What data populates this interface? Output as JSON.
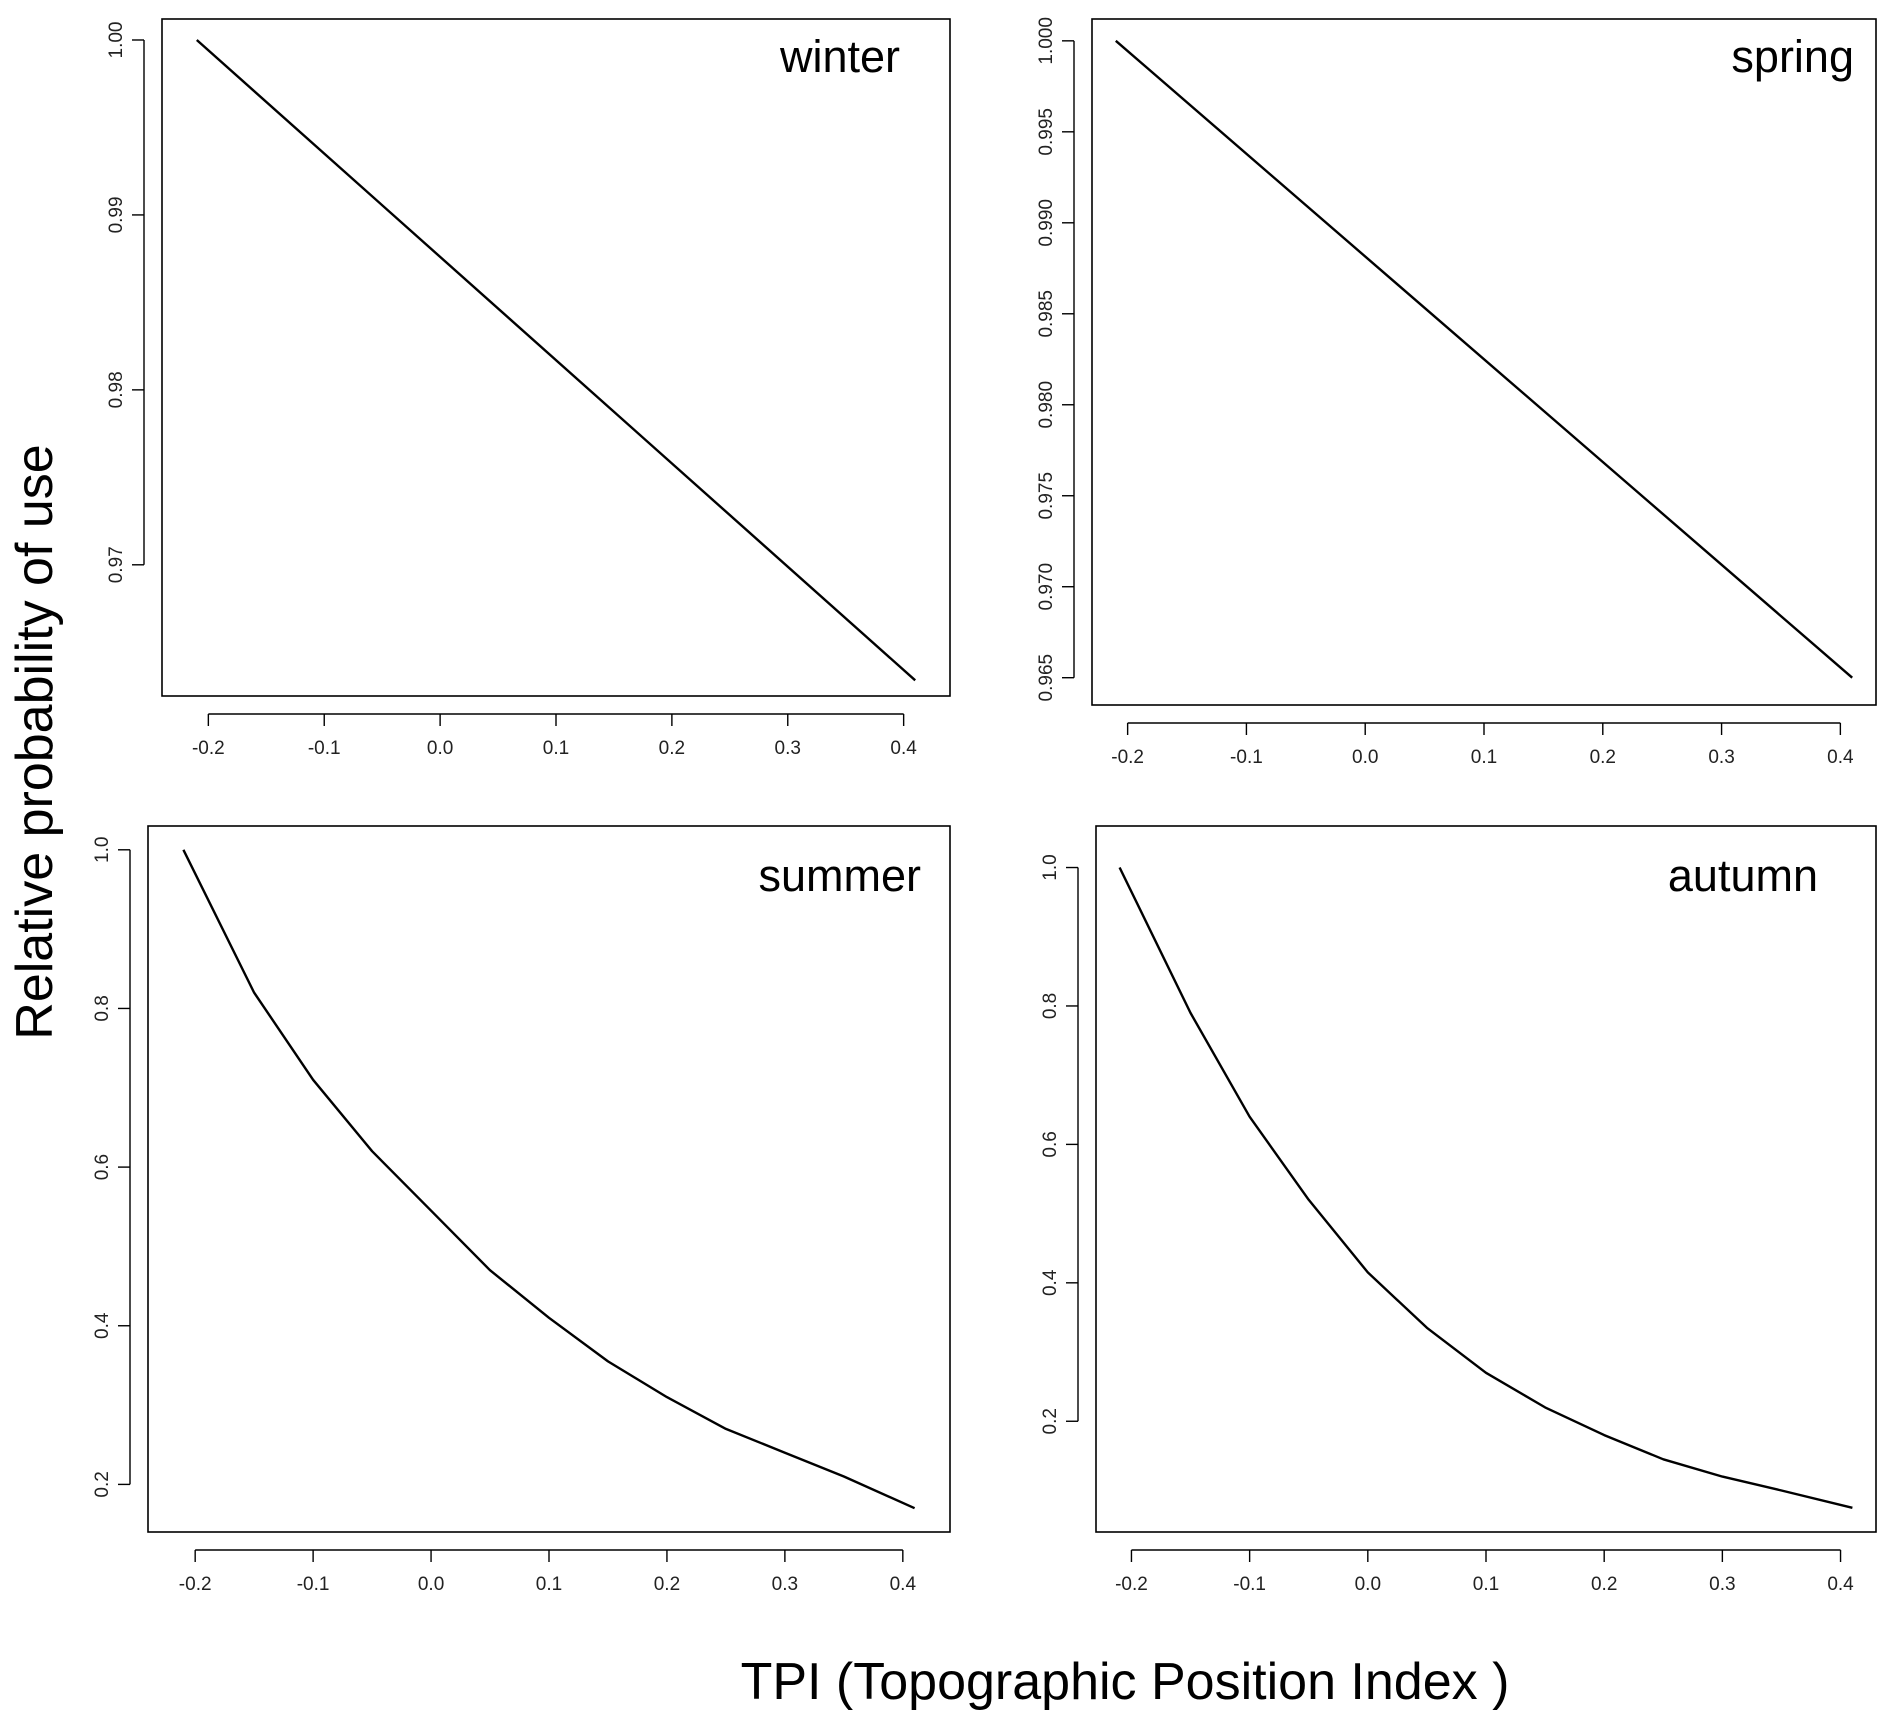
{
  "figure": {
    "ylabel": "Relative probability of use",
    "xlabel": "TPI (Topographic Position Index )"
  },
  "chart_data": [
    {
      "type": "line",
      "label": "winter",
      "xlim": [
        -0.24,
        0.44
      ],
      "ylim": [
        0.9625,
        1.0012
      ],
      "x_ticks": [
        "-0.2",
        "-0.1",
        "0.0",
        "0.1",
        "0.2",
        "0.3",
        "0.4"
      ],
      "y_ticks": [
        "0.97",
        "0.98",
        "0.99",
        "1.00"
      ],
      "x": [
        -0.21,
        0.41
      ],
      "y": [
        1.0,
        0.9634
      ]
    },
    {
      "type": "line",
      "label": "spring",
      "xlim": [
        -0.23,
        0.43
      ],
      "ylim": [
        0.9635,
        1.0012
      ],
      "x_ticks": [
        "-0.2",
        "-0.1",
        "0.0",
        "0.1",
        "0.2",
        "0.3",
        "0.4"
      ],
      "y_ticks": [
        "0.965",
        "0.970",
        "0.975",
        "0.980",
        "0.985",
        "0.990",
        "0.995",
        "1.000"
      ],
      "x": [
        -0.21,
        0.41
      ],
      "y": [
        1.0,
        0.965
      ]
    },
    {
      "type": "line",
      "label": "summer",
      "xlim": [
        -0.24,
        0.44
      ],
      "ylim": [
        0.14,
        1.03
      ],
      "x_ticks": [
        "-0.2",
        "-0.1",
        "0.0",
        "0.1",
        "0.2",
        "0.3",
        "0.4"
      ],
      "y_ticks": [
        "0.2",
        "0.4",
        "0.6",
        "0.8",
        "1.0"
      ],
      "x": [
        -0.21,
        -0.15,
        -0.1,
        -0.05,
        0.0,
        0.05,
        0.1,
        0.15,
        0.2,
        0.25,
        0.3,
        0.35,
        0.41
      ],
      "y": [
        1.0,
        0.82,
        0.71,
        0.62,
        0.545,
        0.47,
        0.41,
        0.355,
        0.31,
        0.27,
        0.24,
        0.21,
        0.17
      ]
    },
    {
      "type": "line",
      "label": "autumn",
      "xlim": [
        -0.23,
        0.43
      ],
      "ylim": [
        0.04,
        1.06
      ],
      "x_ticks": [
        "-0.2",
        "-0.1",
        "0.0",
        "0.1",
        "0.2",
        "0.3",
        "0.4"
      ],
      "y_ticks": [
        "0.2",
        "0.4",
        "0.6",
        "0.8",
        "1.0"
      ],
      "x": [
        -0.21,
        -0.15,
        -0.1,
        -0.05,
        0.0,
        0.05,
        0.1,
        0.15,
        0.2,
        0.25,
        0.3,
        0.35,
        0.41
      ],
      "y": [
        1.0,
        0.79,
        0.64,
        0.52,
        0.415,
        0.335,
        0.27,
        0.22,
        0.18,
        0.145,
        0.12,
        0.1,
        0.075
      ]
    }
  ]
}
